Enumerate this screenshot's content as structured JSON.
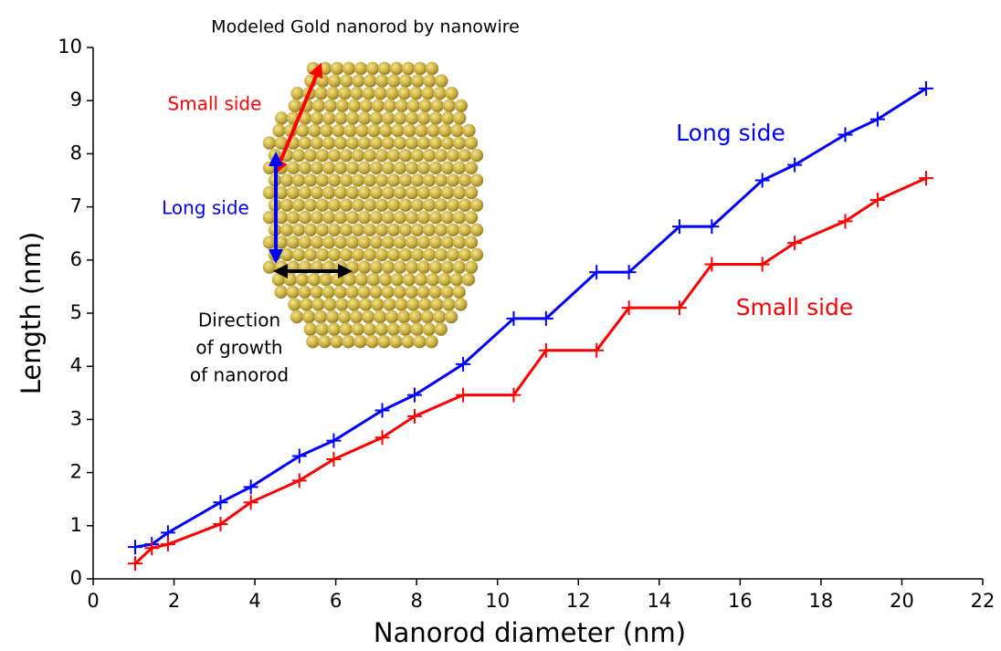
{
  "chart_data": {
    "type": "line",
    "xlabel": "Nanorod diameter (nm)",
    "ylabel": "Length (nm)",
    "xlim": [
      0,
      22
    ],
    "xticks": [
      0,
      2,
      4,
      6,
      8,
      10,
      12,
      14,
      16,
      18,
      20,
      22
    ],
    "ylim": [
      0,
      10
    ],
    "yticks": [
      0,
      1,
      2,
      3,
      4,
      5,
      6,
      7,
      8,
      9,
      10
    ],
    "x": [
      1.04,
      1.45,
      1.85,
      3.15,
      3.9,
      5.1,
      5.95,
      7.15,
      7.95,
      9.15,
      10.4,
      11.2,
      12.45,
      13.25,
      14.5,
      15.3,
      16.55,
      17.35,
      18.6,
      19.4,
      20.6
    ],
    "series": [
      {
        "name": "Long side",
        "color": "#0000ff",
        "values": [
          0.6,
          0.65,
          0.87,
          1.44,
          1.73,
          2.31,
          2.6,
          3.17,
          3.46,
          4.04,
          4.9,
          4.9,
          5.77,
          5.77,
          6.63,
          6.63,
          7.5,
          7.79,
          8.36,
          8.65,
          9.23
        ]
      },
      {
        "name": "Small side",
        "color": "#ff0000",
        "values": [
          0.29,
          0.58,
          0.65,
          1.03,
          1.44,
          1.85,
          2.25,
          2.66,
          3.06,
          3.46,
          3.46,
          4.3,
          4.3,
          5.1,
          5.1,
          5.92,
          5.92,
          6.32,
          6.73,
          7.13,
          7.54
        ]
      }
    ],
    "inset": {
      "title": "Modeled Gold nanorod by nanowire",
      "small_side": "Small side",
      "long_side": "Long side",
      "direction": [
        "Direction",
        "of growth",
        "of nanorod"
      ]
    }
  }
}
